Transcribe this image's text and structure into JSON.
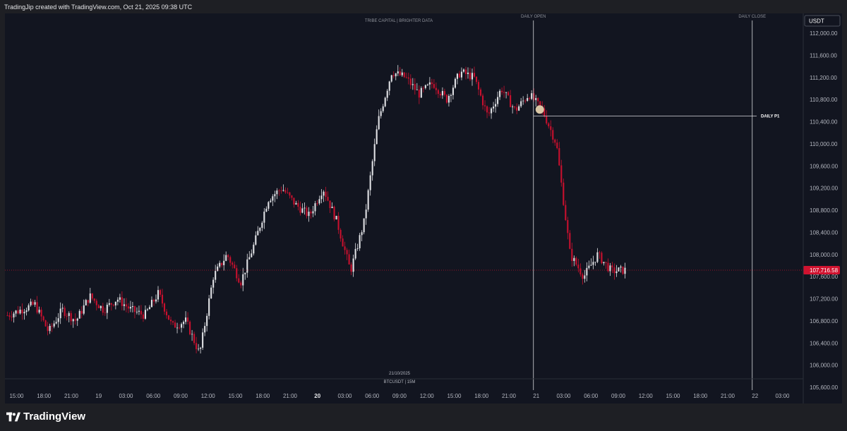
{
  "header": {
    "caption": "TradingJip created with TradingView.com, Oct 21, 2025 09:38 UTC"
  },
  "footer": {
    "brand": "TradingView",
    "logo_icon": "tradingview-logo-icon"
  },
  "colors": {
    "background": "#121520",
    "bull": "#dfe0e4",
    "bear": "#c8102e",
    "price_tag": "#d0122f",
    "marker": "#d9c6a5"
  },
  "chart_data": {
    "type": "candlestick",
    "symbol_label": "BTCUSDT | 15M",
    "date_label": "21/10/2025",
    "watermark": "TRIBE CAPITAL | BRIGHTER DATA",
    "currency_label": "USDT",
    "current_price": "107,716.58",
    "current_price_value": 107716.58,
    "y_ticks": [
      "112,000.00",
      "111,600.00",
      "111,200.00",
      "110,800.00",
      "110,400.00",
      "110,000.00",
      "109,600.00",
      "109,200.00",
      "108,800.00",
      "108,400.00",
      "108,000.00",
      "107,600.00",
      "107,200.00",
      "106,800.00",
      "106,400.00",
      "106,000.00",
      "105,600.00"
    ],
    "y_tick_values": [
      112000,
      111600,
      111200,
      110800,
      110400,
      110000,
      109600,
      109200,
      108800,
      108400,
      108000,
      107600,
      107200,
      106800,
      106400,
      106000,
      105600
    ],
    "x_ticks": [
      "15:00",
      "18:00",
      "21:00",
      "19",
      "03:00",
      "06:00",
      "09:00",
      "12:00",
      "15:00",
      "18:00",
      "21:00",
      "20",
      "03:00",
      "06:00",
      "09:00",
      "12:00",
      "15:00",
      "18:00",
      "21:00",
      "21",
      "03:00",
      "06:00",
      "09:00",
      "12:00",
      "15:00",
      "18:00",
      "21:00",
      "22",
      "03:00"
    ],
    "x_ticks_bold": [
      "20"
    ],
    "vertical_lines": [
      {
        "label": "DAILY OPEN",
        "time_index": 19
      },
      {
        "label": "DAILY CLOSE",
        "time_index": 27
      }
    ],
    "levels": [
      {
        "label": "DAILY P1",
        "price": 110500
      }
    ],
    "series_path": [
      [
        0,
        106900
      ],
      [
        2,
        107100
      ],
      [
        3,
        106600
      ],
      [
        4,
        107000
      ],
      [
        5,
        106800
      ],
      [
        6,
        107250
      ],
      [
        7,
        107000
      ],
      [
        8,
        107200
      ],
      [
        9,
        107000
      ],
      [
        10,
        106900
      ],
      [
        11,
        107300
      ],
      [
        12,
        106700
      ],
      [
        13,
        106800
      ],
      [
        14,
        106200
      ],
      [
        15,
        107600
      ],
      [
        16,
        108000
      ],
      [
        17,
        107500
      ],
      [
        18,
        108200
      ],
      [
        19,
        109000
      ],
      [
        20,
        109200
      ],
      [
        21,
        108900
      ],
      [
        22,
        108700
      ],
      [
        23,
        109200
      ],
      [
        24,
        108600
      ],
      [
        25,
        107700
      ],
      [
        26,
        108600
      ],
      [
        27,
        110400
      ],
      [
        28,
        111300
      ],
      [
        29,
        111200
      ],
      [
        30,
        110900
      ],
      [
        31,
        111100
      ],
      [
        32,
        110800
      ],
      [
        33,
        111300
      ],
      [
        34,
        111200
      ],
      [
        35,
        110500
      ],
      [
        36,
        111000
      ],
      [
        37,
        110600
      ],
      [
        38,
        110900
      ],
      [
        39,
        110600
      ],
      [
        40,
        110000
      ],
      [
        41,
        108000
      ],
      [
        42,
        107600
      ],
      [
        43,
        108000
      ],
      [
        44,
        107700
      ],
      [
        45,
        107716
      ]
    ]
  }
}
